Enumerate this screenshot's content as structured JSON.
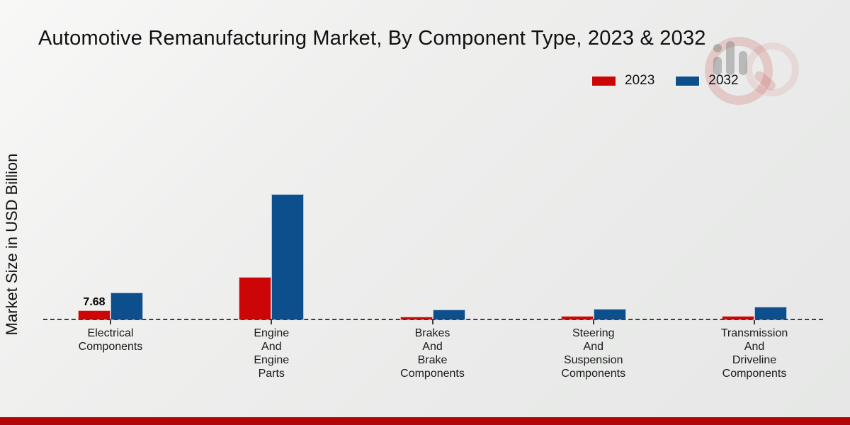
{
  "chart_data": {
    "type": "bar",
    "title": "Automotive Remanufacturing Market, By Component Type, 2023 & 2032",
    "ylabel": "Market Size in USD Billion",
    "xlabel": "",
    "categories": [
      "Electrical\nComponents",
      "Engine\nAnd\nEngine\nParts",
      "Brakes\nAnd\nBrake\nComponents",
      "Steering\nAnd\nSuspension\nComponents",
      "Transmission\nAnd\nDriveline\nComponents"
    ],
    "series": [
      {
        "name": "2023",
        "color": "#cc0606",
        "values": [
          7.68,
          33.5,
          2.5,
          3.5,
          3.5
        ]
      },
      {
        "name": "2032",
        "color": "#0d4e8d",
        "values": [
          21.4,
          97.4,
          8.1,
          8.8,
          10.6
        ]
      }
    ],
    "annotations": [
      {
        "series": "2023",
        "category_index": 0,
        "text": "7.68"
      }
    ],
    "legend_position": "top-right",
    "baseline_style": "dashed",
    "grid": false,
    "ylim": [
      0,
      100
    ]
  },
  "footer_bar_color": "#b30505",
  "watermark_icon": "magnifier-analytics-logo"
}
